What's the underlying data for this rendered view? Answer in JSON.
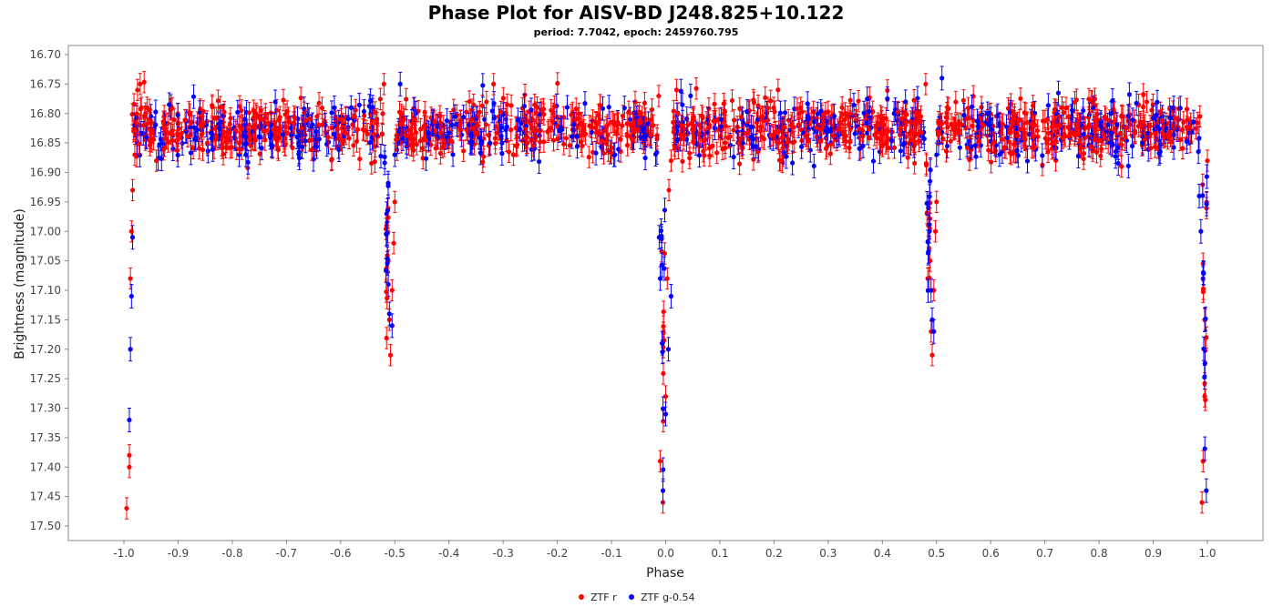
{
  "chart_data": {
    "type": "scatter",
    "title": "Phase Plot for AISV-BD J248.825+10.122",
    "subtitle": "period: 7.7042, epoch: 2459760.795",
    "xlabel": "Phase",
    "ylabel": "Brightness (magnitude)",
    "xlim": [
      -1.1,
      1.1
    ],
    "ylim": [
      17.52,
      16.69
    ],
    "y_inverted": true,
    "x_ticks": [
      "-1.0",
      "-0.9",
      "-0.8",
      "-0.7",
      "-0.6",
      "-0.5",
      "-0.4",
      "-0.3",
      "-0.2",
      "-0.1",
      "0.0",
      "0.1",
      "0.2",
      "0.3",
      "0.4",
      "0.5",
      "0.6",
      "0.7",
      "0.8",
      "0.9",
      "1.0"
    ],
    "y_ticks": [
      "16.70",
      "16.75",
      "16.80",
      "16.85",
      "16.90",
      "16.95",
      "17.00",
      "17.05",
      "17.10",
      "17.15",
      "17.20",
      "17.25",
      "17.30",
      "17.35",
      "17.40",
      "17.45",
      "17.50"
    ],
    "grid": false,
    "legend_position": "bottom",
    "error_bars": true,
    "series": [
      {
        "name": "ZTF r",
        "color": "#ff0000",
        "baseline_mag": 16.825,
        "scatter_mag": 0.05,
        "typical_error": 0.018,
        "eclipses": [
          {
            "phase": 0.0,
            "min_mag": 17.47,
            "label": "primary"
          },
          {
            "phase": -0.51,
            "min_mag": 17.21,
            "label": "secondary"
          }
        ],
        "points": [
          [
            -0.995,
            17.47
          ],
          [
            -0.99,
            17.4
          ],
          [
            -0.99,
            17.38
          ],
          [
            -0.988,
            17.08
          ],
          [
            -0.986,
            17.0
          ],
          [
            -0.984,
            16.93
          ],
          [
            -0.98,
            16.87
          ],
          [
            -0.975,
            16.76
          ],
          [
            -0.97,
            16.75
          ],
          [
            -0.96,
            16.8
          ],
          [
            -0.95,
            16.83
          ],
          [
            -0.52,
            16.75
          ],
          [
            -0.515,
            16.99
          ],
          [
            -0.512,
            17.05
          ],
          [
            -0.51,
            17.15
          ],
          [
            -0.508,
            17.21
          ],
          [
            -0.505,
            17.1
          ],
          [
            -0.502,
            17.02
          ],
          [
            -0.5,
            16.95
          ],
          [
            -0.01,
            17.39
          ],
          [
            -0.005,
            17.46
          ],
          [
            0.0,
            17.28
          ],
          [
            0.003,
            17.08
          ],
          [
            0.006,
            16.93
          ],
          [
            0.01,
            16.88
          ],
          [
            0.02,
            16.76
          ],
          [
            0.48,
            16.75
          ],
          [
            0.485,
            16.99
          ],
          [
            0.488,
            17.05
          ],
          [
            0.49,
            17.17
          ],
          [
            0.492,
            17.21
          ],
          [
            0.495,
            17.1
          ],
          [
            0.498,
            17.0
          ],
          [
            0.5,
            16.95
          ],
          [
            0.99,
            17.46
          ],
          [
            0.992,
            17.39
          ],
          [
            0.995,
            17.28
          ],
          [
            0.998,
            17.18
          ],
          [
            1.0,
            16.88
          ]
        ]
      },
      {
        "name": "ZTF g-0.54",
        "color": "#0000ff",
        "baseline_mag": 16.83,
        "scatter_mag": 0.055,
        "typical_error": 0.02,
        "eclipses": [
          {
            "phase": 0.0,
            "min_mag": 17.45,
            "label": "primary"
          },
          {
            "phase": -0.51,
            "min_mag": 17.15,
            "label": "secondary"
          }
        ],
        "points": [
          [
            -0.99,
            17.32
          ],
          [
            -0.988,
            17.2
          ],
          [
            -0.986,
            17.11
          ],
          [
            -0.984,
            17.01
          ],
          [
            -0.98,
            16.82
          ],
          [
            -0.515,
            16.97
          ],
          [
            -0.512,
            17.09
          ],
          [
            -0.51,
            17.14
          ],
          [
            -0.505,
            17.16
          ],
          [
            -0.5,
            16.87
          ],
          [
            -0.49,
            16.75
          ],
          [
            -0.012,
            17.01
          ],
          [
            -0.01,
            17.08
          ],
          [
            -0.005,
            17.44
          ],
          [
            0.0,
            17.31
          ],
          [
            0.005,
            17.2
          ],
          [
            0.01,
            17.11
          ],
          [
            0.485,
            16.96
          ],
          [
            0.49,
            17.1
          ],
          [
            0.492,
            17.15
          ],
          [
            0.495,
            17.17
          ],
          [
            0.5,
            16.87
          ],
          [
            0.51,
            16.74
          ],
          [
            0.985,
            16.94
          ],
          [
            0.988,
            17.0
          ],
          [
            0.992,
            17.08
          ],
          [
            0.995,
            17.15
          ],
          [
            0.998,
            17.44
          ]
        ]
      }
    ]
  }
}
